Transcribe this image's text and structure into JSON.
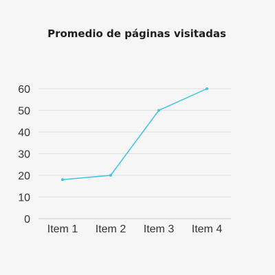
{
  "chart_data": {
    "type": "line",
    "title": "Promedio de páginas visitadas",
    "categories": [
      "Item 1",
      "Item 2",
      "Item 3",
      "Item 4"
    ],
    "series": [
      {
        "values": [
          18,
          20,
          50,
          60
        ]
      }
    ],
    "ylim": [
      0,
      60
    ],
    "yticks": [
      0,
      10,
      20,
      30,
      40,
      50,
      60
    ],
    "xlabel": "",
    "ylabel": "",
    "grid": true,
    "colors": {
      "series": "#3ec3e6",
      "grid": "#dedede",
      "background": "#f6f6f6"
    }
  }
}
